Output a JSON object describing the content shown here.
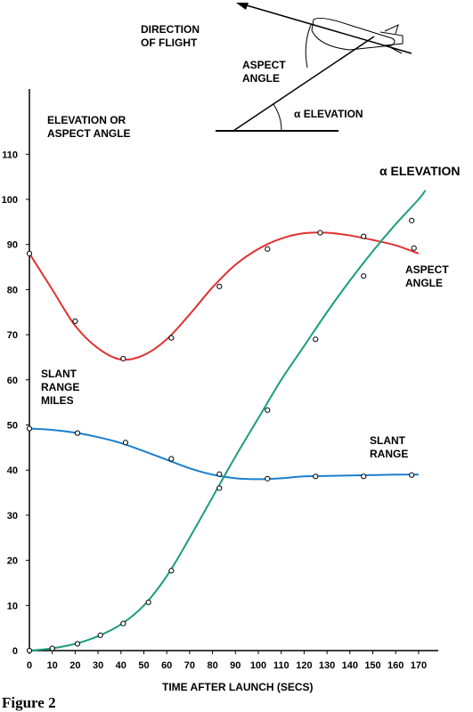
{
  "diagram": {
    "direction_line1": "DIRECTION",
    "direction_line2": "OF FLIGHT",
    "aspect_line1": "ASPECT",
    "aspect_line2": "ANGLE",
    "alpha_elevation": "α ELEVATION"
  },
  "figure_caption": "Figure 2",
  "chart_data": {
    "type": "line",
    "xlabel": "TIME AFTER LAUNCH (SECS)",
    "ylabel_line1": "ELEVATION OR",
    "ylabel_line2": "ASPECT ANGLE",
    "xlim": [
      0,
      175
    ],
    "ylim": [
      0,
      120
    ],
    "x_ticks": [
      0,
      10,
      20,
      30,
      40,
      50,
      60,
      70,
      80,
      90,
      100,
      110,
      120,
      130,
      140,
      150,
      160,
      170
    ],
    "y_ticks": [
      0,
      10,
      20,
      30,
      40,
      50,
      60,
      70,
      80,
      90,
      100,
      110
    ],
    "series": [
      {
        "name": "ASPECT ANGLE",
        "label_line1": "ASPECT",
        "label_line2": "ANGLE",
        "color": "#e03030",
        "curve_x": [
          0,
          10,
          20,
          30,
          40,
          50,
          60,
          70,
          80,
          90,
          100,
          110,
          120,
          130,
          140,
          150,
          160,
          170
        ],
        "curve_y": [
          88,
          80,
          72,
          67,
          64.5,
          65.5,
          69,
          74.5,
          80.5,
          85.5,
          89,
          91.3,
          92.5,
          92.6,
          92,
          91,
          89.8,
          88
        ],
        "points": [
          [
            0,
            88
          ],
          [
            20,
            73
          ],
          [
            41,
            64.7
          ],
          [
            62,
            69.3
          ],
          [
            83,
            80.7
          ],
          [
            104,
            89
          ],
          [
            127,
            92.6
          ],
          [
            146,
            91.8
          ],
          [
            168,
            89.2
          ]
        ]
      },
      {
        "name": "SLANT RANGE",
        "label_line1": "SLANT",
        "label_line2": "RANGE",
        "color": "#1a7fcf",
        "curve_x": [
          0,
          10,
          20,
          30,
          40,
          50,
          60,
          70,
          80,
          90,
          100,
          110,
          120,
          130,
          140,
          150,
          160,
          170
        ],
        "curve_y": [
          49.2,
          48.9,
          48.3,
          47.3,
          46,
          44.2,
          42.3,
          40.4,
          39,
          38.2,
          38,
          38.2,
          38.6,
          38.7,
          38.8,
          38.9,
          39,
          39
        ],
        "points": [
          [
            0,
            49.2
          ],
          [
            21,
            48.2
          ],
          [
            42,
            46.1
          ],
          [
            62,
            42.5
          ],
          [
            83,
            39.1
          ],
          [
            104,
            38.1
          ],
          [
            125,
            38.6
          ],
          [
            146,
            38.6
          ],
          [
            167,
            38.9
          ]
        ]
      },
      {
        "name": "α ELEVATION",
        "color": "#1a9e7a",
        "curve_x": [
          0,
          10,
          20,
          30,
          40,
          50,
          60,
          70,
          80,
          90,
          100,
          110,
          120,
          130,
          140,
          150,
          160,
          170,
          173
        ],
        "curve_y": [
          0,
          0.5,
          1.5,
          3.2,
          5.8,
          10,
          16.5,
          25,
          34,
          43,
          51.5,
          60,
          67.5,
          75,
          82,
          88.5,
          94.5,
          100,
          102
        ],
        "points": [
          [
            0,
            0
          ],
          [
            10,
            0.5
          ],
          [
            21,
            1.5
          ],
          [
            31,
            3.4
          ],
          [
            41,
            6
          ],
          [
            52,
            10.7
          ],
          [
            62,
            17.7
          ],
          [
            83,
            36
          ],
          [
            104,
            53.3
          ],
          [
            125,
            69
          ],
          [
            146,
            83
          ],
          [
            167,
            95.3
          ]
        ]
      }
    ],
    "annotation_slant_range": [
      "SLANT",
      "RANGE",
      "MILES"
    ]
  }
}
